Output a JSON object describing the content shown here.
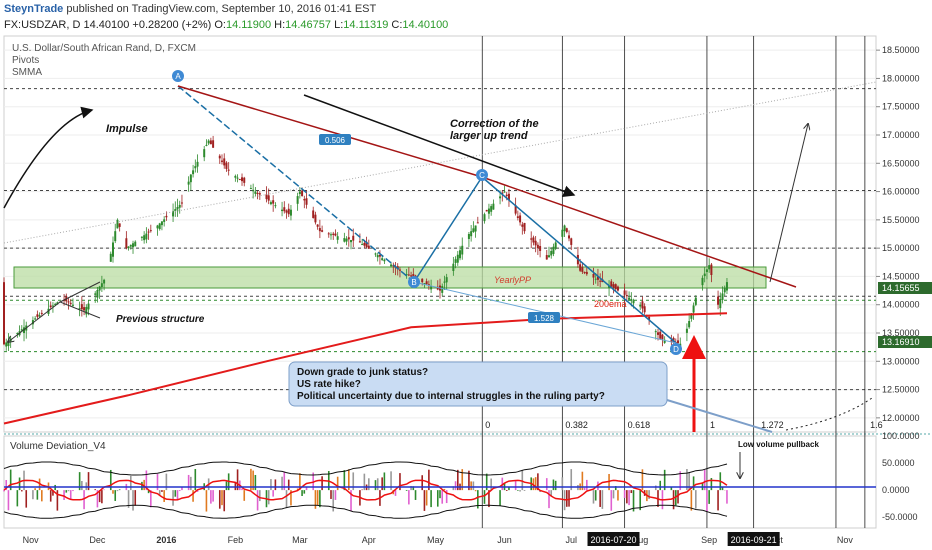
{
  "header": {
    "author": "SteynTrade",
    "published_text": "published on TradingView.com, September 10, 2016 01:41 EST",
    "symbol": "FX:USDZAR, D",
    "last": "14.40100",
    "change": "+0.28200 (+2%)",
    "open_label": "O:",
    "open": "14.11900",
    "high_label": "H:",
    "high": "14.46757",
    "low_label": "L:",
    "low": "14.11319",
    "close_label": "C:",
    "close": "14.40100"
  },
  "legend": {
    "title": "U.S. Dollar/South African Rand, D, FXCM",
    "pivots": "Pivots",
    "smma": "SMMA"
  },
  "colors": {
    "up": "#2d8a2d",
    "down": "#a02020",
    "ma": "#e02020",
    "fib": "#1a7ab5",
    "trend": "#a01010",
    "zone": "#b8dca0",
    "callout": "#c9dcf3"
  },
  "chart_data": [
    {
      "type": "candlestick",
      "title": "U.S. Dollar/South African Rand, D, FXCM",
      "y_ticks": [
        "18.50000",
        "18.00000",
        "17.50000",
        "17.00000",
        "16.50000",
        "16.00000",
        "15.50000",
        "15.00000",
        "14.50000",
        "14.00000",
        "13.50000",
        "13.00000",
        "12.50000",
        "12.00000"
      ],
      "ylim": [
        11.75,
        18.75
      ],
      "x_ticks": [
        "Nov",
        "Dec",
        "2016",
        "Feb",
        "Mar",
        "Apr",
        "May",
        "Jun",
        "Jul",
        "Aug",
        "Sep",
        "Oct",
        "Nov"
      ],
      "x_highlight": [
        "2016-07-20",
        "2016-09-21"
      ],
      "price_labels": [
        "14.15655",
        "13.16910"
      ],
      "horizontal_levels": [
        17.82,
        16.02,
        15.0,
        14.15,
        14.08,
        13.17,
        12.5
      ],
      "ohlc_path": [
        {
          "d": "2015-10-20",
          "v": 13.3
        },
        {
          "d": "2015-11-01",
          "v": 13.7
        },
        {
          "d": "2015-11-15",
          "v": 14.1
        },
        {
          "d": "2015-11-25",
          "v": 13.9
        },
        {
          "d": "2015-12-05",
          "v": 14.5
        },
        {
          "d": "2015-12-10",
          "v": 15.5
        },
        {
          "d": "2015-12-14",
          "v": 15.0
        },
        {
          "d": "2015-12-28",
          "v": 15.4
        },
        {
          "d": "2016-01-08",
          "v": 15.8
        },
        {
          "d": "2016-01-12",
          "v": 16.3
        },
        {
          "d": "2016-01-20",
          "v": 16.9
        },
        {
          "d": "2016-01-28",
          "v": 16.4
        },
        {
          "d": "2016-02-10",
          "v": 16.0
        },
        {
          "d": "2016-02-25",
          "v": 15.6
        },
        {
          "d": "2016-03-01",
          "v": 16.0
        },
        {
          "d": "2016-03-10",
          "v": 15.3
        },
        {
          "d": "2016-03-28",
          "v": 15.1
        },
        {
          "d": "2016-04-15",
          "v": 14.6
        },
        {
          "d": "2016-04-25",
          "v": 14.4
        },
        {
          "d": "2016-05-03",
          "v": 14.25
        },
        {
          "d": "2016-05-15",
          "v": 15.2
        },
        {
          "d": "2016-05-25",
          "v": 15.7
        },
        {
          "d": "2016-06-01",
          "v": 16.0
        },
        {
          "d": "2016-06-10",
          "v": 15.3
        },
        {
          "d": "2016-06-20",
          "v": 14.8
        },
        {
          "d": "2016-06-28",
          "v": 15.4
        },
        {
          "d": "2016-07-05",
          "v": 14.6
        },
        {
          "d": "2016-07-20",
          "v": 14.3
        },
        {
          "d": "2016-08-01",
          "v": 14.0
        },
        {
          "d": "2016-08-10",
          "v": 13.4
        },
        {
          "d": "2016-08-20",
          "v": 13.3
        },
        {
          "d": "2016-08-28",
          "v": 14.4
        },
        {
          "d": "2016-09-01",
          "v": 14.7
        },
        {
          "d": "2016-09-05",
          "v": 14.0
        },
        {
          "d": "2016-09-09",
          "v": 14.4
        }
      ],
      "ema_200": [
        {
          "d": "2015-10-20",
          "v": 11.9
        },
        {
          "d": "2015-12-15",
          "v": 12.4
        },
        {
          "d": "2016-02-15",
          "v": 13.0
        },
        {
          "d": "2016-04-20",
          "v": 13.6
        },
        {
          "d": "2016-06-20",
          "v": 13.75
        },
        {
          "d": "2016-09-09",
          "v": 13.85
        }
      ],
      "annotations": {
        "impulse": "Impulse",
        "correction_l1": "Correction of the",
        "correction_l2": "larger up trend",
        "previous_structure": "Previous structure",
        "yearly_pp": "YearlyPP",
        "ema200": "200ema",
        "fib_ab": "0.506",
        "fib_bd": "1.528",
        "point_a": "A",
        "point_b": "B",
        "point_c": "C",
        "point_d": "D",
        "fib_levels": [
          "0",
          "0.382",
          "0.618",
          "1",
          "1.272",
          "1.6"
        ],
        "callout": [
          "Down grade to junk status?",
          "US rate hike?",
          "Political uncertainty due to internal struggles in the ruling party?"
        ]
      }
    },
    {
      "type": "bar",
      "title": "Volume Deviation_V4",
      "y_ticks": [
        "100.0000",
        "50.0000",
        "0.0000",
        "-50.0000"
      ],
      "ylim": [
        -70,
        100
      ],
      "annotation": "Low volume pullback"
    }
  ]
}
